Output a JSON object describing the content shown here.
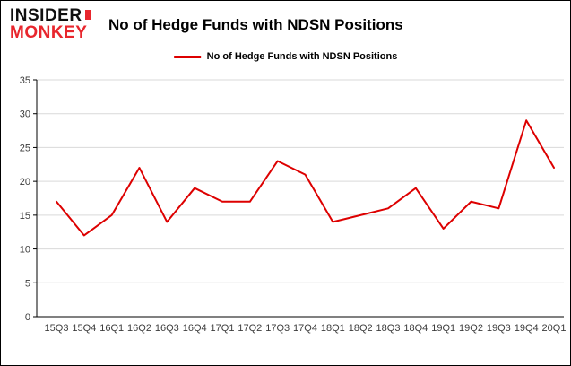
{
  "header": {
    "logo_line1": "INSIDER",
    "logo_line2": "MONKEY",
    "title": "No of Hedge Funds with NDSN Positions"
  },
  "legend": {
    "label": "No of Hedge Funds with NDSN Positions",
    "color": "#dd0000"
  },
  "chart_data": {
    "type": "line",
    "title": "No of Hedge Funds with NDSN Positions",
    "categories": [
      "15Q3",
      "15Q4",
      "16Q1",
      "16Q2",
      "16Q3",
      "16Q4",
      "17Q1",
      "17Q2",
      "17Q3",
      "17Q4",
      "18Q1",
      "18Q2",
      "18Q3",
      "18Q4",
      "19Q1",
      "19Q2",
      "19Q3",
      "19Q4",
      "20Q1"
    ],
    "values": [
      17,
      12,
      15,
      22,
      14,
      19,
      17,
      17,
      23,
      21,
      14,
      15,
      16,
      19,
      13,
      17,
      16,
      29,
      22
    ],
    "series_name": "No of Hedge Funds with NDSN Positions",
    "xlabel": "",
    "ylabel": "",
    "ylim": [
      0,
      35
    ],
    "yticks": [
      0,
      5,
      10,
      15,
      20,
      25,
      30,
      35
    ],
    "grid": true,
    "legend_position": "top",
    "line_color": "#dd0000",
    "grid_color": "#d9d9d9",
    "axis_color": "#000000",
    "tick_label_color": "#3c3c3c"
  }
}
